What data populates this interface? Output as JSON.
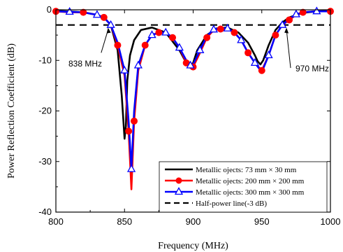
{
  "chart_data": {
    "type": "line",
    "xlabel": "Frequency (MHz)",
    "ylabel": "Power Reflection Coefficient (dB)",
    "xlim": [
      800,
      1000
    ],
    "ylim": [
      -40,
      0
    ],
    "xticks": [
      800,
      850,
      900,
      950,
      1000
    ],
    "yticks": [
      0,
      -10,
      -20,
      -30,
      -40
    ],
    "grid": false,
    "legend_position": "bottom-right",
    "series": [
      {
        "name": "Metallic ojects: 73 mm × 30 mm",
        "color": "#000000",
        "marker": "none",
        "x": [
          800,
          820,
          830,
          835,
          840,
          845,
          848,
          850,
          851,
          852,
          854,
          857,
          862,
          870,
          880,
          890,
          895,
          898,
          900,
          903,
          910,
          917,
          925,
          933,
          940,
          945,
          947,
          949,
          951,
          955,
          960,
          965,
          970,
          980,
          990,
          1000
        ],
        "y": [
          -0.2,
          -0.5,
          -1,
          -1.5,
          -3,
          -8,
          -17,
          -25.5,
          -23,
          -14,
          -9,
          -6,
          -4,
          -3.5,
          -4.5,
          -8,
          -10.5,
          -11,
          -10.5,
          -8,
          -5,
          -3.7,
          -3.5,
          -4.5,
          -6.5,
          -9,
          -10.2,
          -10.8,
          -10,
          -7,
          -4,
          -2.5,
          -1.5,
          -0.6,
          -0.3,
          -0.2
        ]
      },
      {
        "name": "Metallic ojects: 200 mm × 200 mm",
        "color": "#ff0000",
        "marker": "circle",
        "x": [
          800,
          810,
          820,
          830,
          835,
          840,
          845,
          850,
          853,
          855,
          857,
          860,
          865,
          870,
          875,
          880,
          885,
          890,
          895,
          898,
          900,
          905,
          910,
          915,
          920,
          925,
          930,
          935,
          940,
          945,
          950,
          955,
          960,
          965,
          970,
          975,
          980,
          990,
          1000
        ],
        "y": [
          -0.3,
          -0.5,
          -0.5,
          -1,
          -1.5,
          -3,
          -7,
          -13,
          -24,
          -35.5,
          -22,
          -12,
          -7,
          -5,
          -4.5,
          -4.5,
          -5.5,
          -7.5,
          -10.5,
          -11.5,
          -11.3,
          -8.5,
          -5.5,
          -4,
          -3.8,
          -3.8,
          -4.5,
          -6,
          -8.5,
          -10.5,
          -12,
          -9,
          -5,
          -3,
          -2,
          -1,
          -0.5,
          -0.3,
          -0.3
        ]
      },
      {
        "name": "Metallic ojects: 300 mm × 300 mm",
        "color": "#0000ff",
        "marker": "triangle",
        "x": [
          800,
          810,
          820,
          830,
          835,
          840,
          845,
          850,
          853,
          855,
          857,
          860,
          865,
          870,
          875,
          880,
          885,
          890,
          895,
          898,
          900,
          905,
          910,
          915,
          920,
          925,
          930,
          935,
          940,
          945,
          950,
          955,
          960,
          965,
          970,
          975,
          980,
          990,
          1000
        ],
        "y": [
          -0.3,
          -0.4,
          -0.5,
          -1,
          -1.5,
          -3,
          -6.5,
          -12,
          -22,
          -31.5,
          -20,
          -11,
          -7,
          -5,
          -4.5,
          -4.5,
          -5.5,
          -7.5,
          -10,
          -11,
          -10.8,
          -8,
          -5.2,
          -3.9,
          -3.6,
          -3.7,
          -4.5,
          -6,
          -8.5,
          -10.5,
          -12.3,
          -9,
          -5,
          -3,
          -1.8,
          -0.9,
          -0.5,
          -0.3,
          -0.3
        ]
      },
      {
        "name": "Half-power line(-3 dB)",
        "color": "#000000",
        "marker": "none",
        "dashed": true,
        "x": [
          800,
          1000
        ],
        "y": [
          -3,
          -3
        ]
      }
    ],
    "annotations": [
      {
        "text": "838 MHz",
        "x": 838,
        "y": -3
      },
      {
        "text": "970 MHz",
        "x": 968,
        "y": -3
      }
    ]
  }
}
